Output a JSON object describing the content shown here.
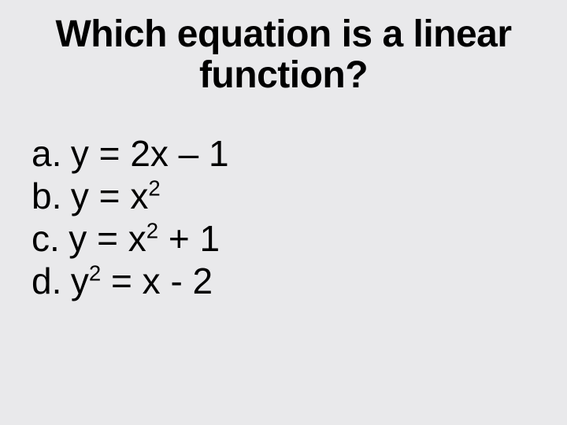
{
  "typography": {
    "title_fontsize_pt": 36,
    "title_weight": "bold",
    "option_fontsize_pt": 34,
    "option_weight": "normal",
    "font_family": "Arial",
    "text_color": "#000000",
    "background_color": "#e9e9eb"
  },
  "title": {
    "line1": "Which equation is a linear",
    "line2": "function?"
  },
  "options": {
    "a": {
      "label": "a.",
      "lhs": "y",
      "eq": "=",
      "rhs_pre": "2x – 1",
      "sup": "",
      "rhs_post": ""
    },
    "b": {
      "label": "b.",
      "lhs": "y",
      "eq": "=",
      "rhs_pre": "x",
      "sup": "2",
      "rhs_post": ""
    },
    "c": {
      "label": "c.",
      "lhs": "y",
      "eq": "=",
      "rhs_pre": "x",
      "sup": "2",
      "rhs_post": " + 1"
    },
    "d": {
      "label": "d.",
      "lhs_pre": "y",
      "lhs_sup": "2",
      "eq": "=",
      "rhs_pre": "x - 2",
      "sup": "",
      "rhs_post": ""
    }
  }
}
